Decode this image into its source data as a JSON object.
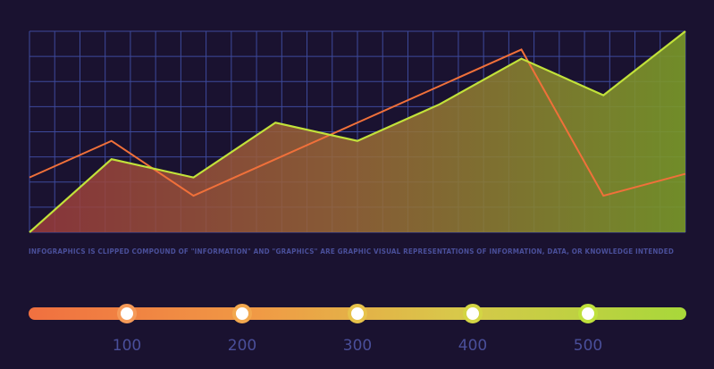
{
  "chart_data": {
    "type": "area",
    "x": [
      0,
      1,
      2,
      3,
      4,
      5,
      6,
      7,
      8
    ],
    "series": [
      {
        "values": [
          0,
          40,
          30,
          60,
          50,
          70,
          95,
          75,
          110
        ],
        "color": "#c2e23a"
      },
      {
        "values": [
          30,
          50,
          20,
          40,
          60,
          80,
          100,
          20,
          32
        ],
        "color": "#f0703a"
      }
    ],
    "grid": true
  },
  "caption": "INFOGRAPHICS IS CLIPPED COMPOUND OF \"INFORMATION\" AND \"GRAPHICS\" ARE GRAPHIC VISUAL REPRESENTATIONS OF INFORMATION, DATA, OR KNOWLEDGE INTENDED",
  "timeline": {
    "labels": [
      "100",
      "200",
      "300",
      "400",
      "500"
    ],
    "marker_colors": [
      "#f59a58",
      "#f2a84e",
      "#e7c24a",
      "#d3d544",
      "#bfe03c"
    ]
  },
  "colors": {
    "background": "#1a1230",
    "grid": "#3d4a9c",
    "accent": "#4a4f9a"
  }
}
